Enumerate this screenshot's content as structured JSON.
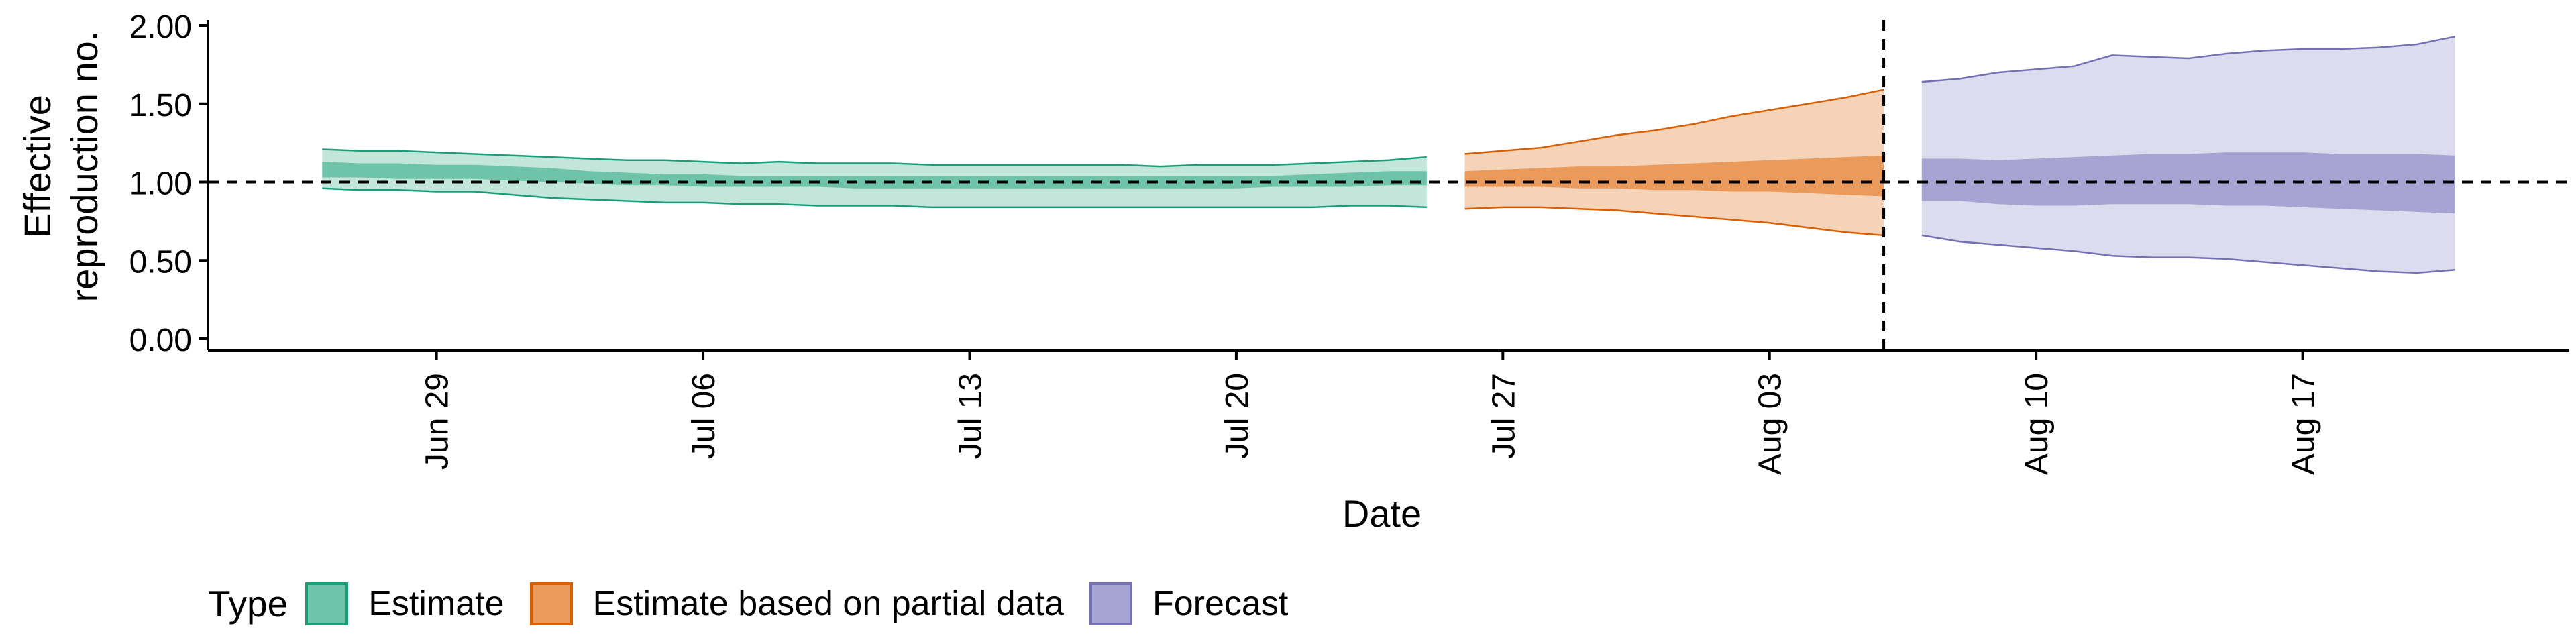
{
  "chart_data": {
    "type": "area",
    "xlabel": "Date",
    "ylabel": [
      "Effective",
      "reproduction no."
    ],
    "ylim": [
      0,
      2
    ],
    "yticks": [
      0,
      0.5,
      1,
      1.5,
      2
    ],
    "ytick_labels": [
      "0.00",
      "0.50",
      "1.00",
      "1.50",
      "2.00"
    ],
    "xlim": [
      "2020-06-23",
      "2020-08-24"
    ],
    "xticks": [
      "2020-06-29",
      "2020-07-06",
      "2020-07-13",
      "2020-07-20",
      "2020-07-27",
      "2020-08-03",
      "2020-08-10",
      "2020-08-17"
    ],
    "xtick_labels": [
      "Jun 29",
      "Jul 06",
      "Jul 13",
      "Jul 20",
      "Jul 27",
      "Aug 03",
      "Aug 10",
      "Aug 17"
    ],
    "reference_line": {
      "axis": "y",
      "value": 1,
      "style": "dashed"
    },
    "vertical_line": {
      "axis": "x",
      "value": "2020-08-06",
      "style": "dashed"
    },
    "legend": {
      "title": "Type",
      "position": "bottom",
      "items": [
        {
          "label": "Estimate",
          "fill": "#6fc3a8",
          "stroke": "#1b9e77"
        },
        {
          "label": "Estimate based on partial data",
          "fill": "#ea9a5b",
          "stroke": "#d95f02"
        },
        {
          "label": "Forecast",
          "fill": "#a7a3d2",
          "stroke": "#7570b3"
        }
      ]
    },
    "series": [
      {
        "name": "Estimate",
        "outer_fill": "#c2e6da",
        "inner_fill": "#6fc3a8",
        "stroke": "#1b9e77",
        "points": [
          {
            "x": "2020-06-26",
            "lo90": 0.96,
            "lo50": 1.03,
            "hi50": 1.13,
            "hi90": 1.21
          },
          {
            "x": "2020-06-27",
            "lo90": 0.95,
            "lo50": 1.03,
            "hi50": 1.12,
            "hi90": 1.2
          },
          {
            "x": "2020-06-28",
            "lo90": 0.95,
            "lo50": 1.02,
            "hi50": 1.12,
            "hi90": 1.2
          },
          {
            "x": "2020-06-29",
            "lo90": 0.94,
            "lo50": 1.02,
            "hi50": 1.11,
            "hi90": 1.19
          },
          {
            "x": "2020-06-30",
            "lo90": 0.94,
            "lo50": 1.02,
            "hi50": 1.11,
            "hi90": 1.18
          },
          {
            "x": "2020-07-01",
            "lo90": 0.92,
            "lo50": 1.01,
            "hi50": 1.1,
            "hi90": 1.17
          },
          {
            "x": "2020-07-02",
            "lo90": 0.9,
            "lo50": 1.0,
            "hi50": 1.09,
            "hi90": 1.16
          },
          {
            "x": "2020-07-03",
            "lo90": 0.89,
            "lo50": 0.99,
            "hi50": 1.07,
            "hi90": 1.15
          },
          {
            "x": "2020-07-04",
            "lo90": 0.88,
            "lo50": 0.98,
            "hi50": 1.06,
            "hi90": 1.14
          },
          {
            "x": "2020-07-05",
            "lo90": 0.87,
            "lo50": 0.98,
            "hi50": 1.05,
            "hi90": 1.14
          },
          {
            "x": "2020-07-06",
            "lo90": 0.87,
            "lo50": 0.97,
            "hi50": 1.05,
            "hi90": 1.13
          },
          {
            "x": "2020-07-07",
            "lo90": 0.86,
            "lo50": 0.97,
            "hi50": 1.04,
            "hi90": 1.12
          },
          {
            "x": "2020-07-08",
            "lo90": 0.86,
            "lo50": 0.97,
            "hi50": 1.04,
            "hi90": 1.13
          },
          {
            "x": "2020-07-09",
            "lo90": 0.85,
            "lo50": 0.97,
            "hi50": 1.04,
            "hi90": 1.12
          },
          {
            "x": "2020-07-10",
            "lo90": 0.85,
            "lo50": 0.96,
            "hi50": 1.04,
            "hi90": 1.12
          },
          {
            "x": "2020-07-11",
            "lo90": 0.85,
            "lo50": 0.96,
            "hi50": 1.04,
            "hi90": 1.12
          },
          {
            "x": "2020-07-12",
            "lo90": 0.84,
            "lo50": 0.96,
            "hi50": 1.04,
            "hi90": 1.11
          },
          {
            "x": "2020-07-13",
            "lo90": 0.84,
            "lo50": 0.96,
            "hi50": 1.04,
            "hi90": 1.11
          },
          {
            "x": "2020-07-14",
            "lo90": 0.84,
            "lo50": 0.96,
            "hi50": 1.04,
            "hi90": 1.11
          },
          {
            "x": "2020-07-15",
            "lo90": 0.84,
            "lo50": 0.96,
            "hi50": 1.04,
            "hi90": 1.11
          },
          {
            "x": "2020-07-16",
            "lo90": 0.84,
            "lo50": 0.96,
            "hi50": 1.04,
            "hi90": 1.11
          },
          {
            "x": "2020-07-17",
            "lo90": 0.84,
            "lo50": 0.96,
            "hi50": 1.04,
            "hi90": 1.11
          },
          {
            "x": "2020-07-18",
            "lo90": 0.84,
            "lo50": 0.96,
            "hi50": 1.04,
            "hi90": 1.1
          },
          {
            "x": "2020-07-19",
            "lo90": 0.84,
            "lo50": 0.96,
            "hi50": 1.04,
            "hi90": 1.11
          },
          {
            "x": "2020-07-20",
            "lo90": 0.84,
            "lo50": 0.96,
            "hi50": 1.04,
            "hi90": 1.11
          },
          {
            "x": "2020-07-21",
            "lo90": 0.84,
            "lo50": 0.97,
            "hi50": 1.04,
            "hi90": 1.11
          },
          {
            "x": "2020-07-22",
            "lo90": 0.84,
            "lo50": 0.97,
            "hi50": 1.05,
            "hi90": 1.12
          },
          {
            "x": "2020-07-23",
            "lo90": 0.85,
            "lo50": 0.97,
            "hi50": 1.06,
            "hi90": 1.13
          },
          {
            "x": "2020-07-24",
            "lo90": 0.85,
            "lo50": 0.98,
            "hi50": 1.07,
            "hi90": 1.14
          },
          {
            "x": "2020-07-25",
            "lo90": 0.84,
            "lo50": 0.98,
            "hi50": 1.07,
            "hi90": 1.16
          }
        ]
      },
      {
        "name": "Estimate based on partial data",
        "outer_fill": "#f5d3b8",
        "inner_fill": "#ea9a5b",
        "stroke": "#d95f02",
        "points": [
          {
            "x": "2020-07-26",
            "lo90": 0.83,
            "lo50": 0.97,
            "hi50": 1.07,
            "hi90": 1.18
          },
          {
            "x": "2020-07-27",
            "lo90": 0.84,
            "lo50": 0.97,
            "hi50": 1.08,
            "hi90": 1.2
          },
          {
            "x": "2020-07-28",
            "lo90": 0.84,
            "lo50": 0.97,
            "hi50": 1.09,
            "hi90": 1.22
          },
          {
            "x": "2020-07-29",
            "lo90": 0.83,
            "lo50": 0.96,
            "hi50": 1.1,
            "hi90": 1.26
          },
          {
            "x": "2020-07-30",
            "lo90": 0.82,
            "lo50": 0.96,
            "hi50": 1.1,
            "hi90": 1.3
          },
          {
            "x": "2020-07-31",
            "lo90": 0.8,
            "lo50": 0.95,
            "hi50": 1.11,
            "hi90": 1.33
          },
          {
            "x": "2020-08-01",
            "lo90": 0.78,
            "lo50": 0.95,
            "hi50": 1.12,
            "hi90": 1.37
          },
          {
            "x": "2020-08-02",
            "lo90": 0.76,
            "lo50": 0.94,
            "hi50": 1.13,
            "hi90": 1.42
          },
          {
            "x": "2020-08-03",
            "lo90": 0.74,
            "lo50": 0.94,
            "hi50": 1.14,
            "hi90": 1.46
          },
          {
            "x": "2020-08-04",
            "lo90": 0.71,
            "lo50": 0.93,
            "hi50": 1.15,
            "hi90": 1.5
          },
          {
            "x": "2020-08-05",
            "lo90": 0.68,
            "lo50": 0.92,
            "hi50": 1.16,
            "hi90": 1.54
          },
          {
            "x": "2020-08-06",
            "lo90": 0.66,
            "lo50": 0.91,
            "hi50": 1.17,
            "hi90": 1.59
          }
        ]
      },
      {
        "name": "Forecast",
        "outer_fill": "#dddcee",
        "inner_fill": "#a7a3d2",
        "stroke": "#7570b3",
        "points": [
          {
            "x": "2020-08-07",
            "lo90": 0.66,
            "lo50": 0.88,
            "hi50": 1.15,
            "hi90": 1.64
          },
          {
            "x": "2020-08-08",
            "lo90": 0.62,
            "lo50": 0.88,
            "hi50": 1.15,
            "hi90": 1.66
          },
          {
            "x": "2020-08-09",
            "lo90": 0.6,
            "lo50": 0.86,
            "hi50": 1.14,
            "hi90": 1.7
          },
          {
            "x": "2020-08-10",
            "lo90": 0.58,
            "lo50": 0.85,
            "hi50": 1.15,
            "hi90": 1.72
          },
          {
            "x": "2020-08-11",
            "lo90": 0.56,
            "lo50": 0.85,
            "hi50": 1.16,
            "hi90": 1.74
          },
          {
            "x": "2020-08-12",
            "lo90": 0.53,
            "lo50": 0.86,
            "hi50": 1.17,
            "hi90": 1.81
          },
          {
            "x": "2020-08-13",
            "lo90": 0.52,
            "lo50": 0.86,
            "hi50": 1.18,
            "hi90": 1.8
          },
          {
            "x": "2020-08-14",
            "lo90": 0.52,
            "lo50": 0.86,
            "hi50": 1.18,
            "hi90": 1.79
          },
          {
            "x": "2020-08-15",
            "lo90": 0.51,
            "lo50": 0.85,
            "hi50": 1.19,
            "hi90": 1.82
          },
          {
            "x": "2020-08-16",
            "lo90": 0.49,
            "lo50": 0.85,
            "hi50": 1.19,
            "hi90": 1.84
          },
          {
            "x": "2020-08-17",
            "lo90": 0.47,
            "lo50": 0.84,
            "hi50": 1.19,
            "hi90": 1.85
          },
          {
            "x": "2020-08-18",
            "lo90": 0.45,
            "lo50": 0.83,
            "hi50": 1.18,
            "hi90": 1.85
          },
          {
            "x": "2020-08-19",
            "lo90": 0.43,
            "lo50": 0.82,
            "hi50": 1.18,
            "hi90": 1.86
          },
          {
            "x": "2020-08-20",
            "lo90": 0.42,
            "lo50": 0.81,
            "hi50": 1.18,
            "hi90": 1.88
          },
          {
            "x": "2020-08-21",
            "lo90": 0.44,
            "lo50": 0.8,
            "hi50": 1.17,
            "hi90": 1.93
          }
        ]
      }
    ]
  }
}
